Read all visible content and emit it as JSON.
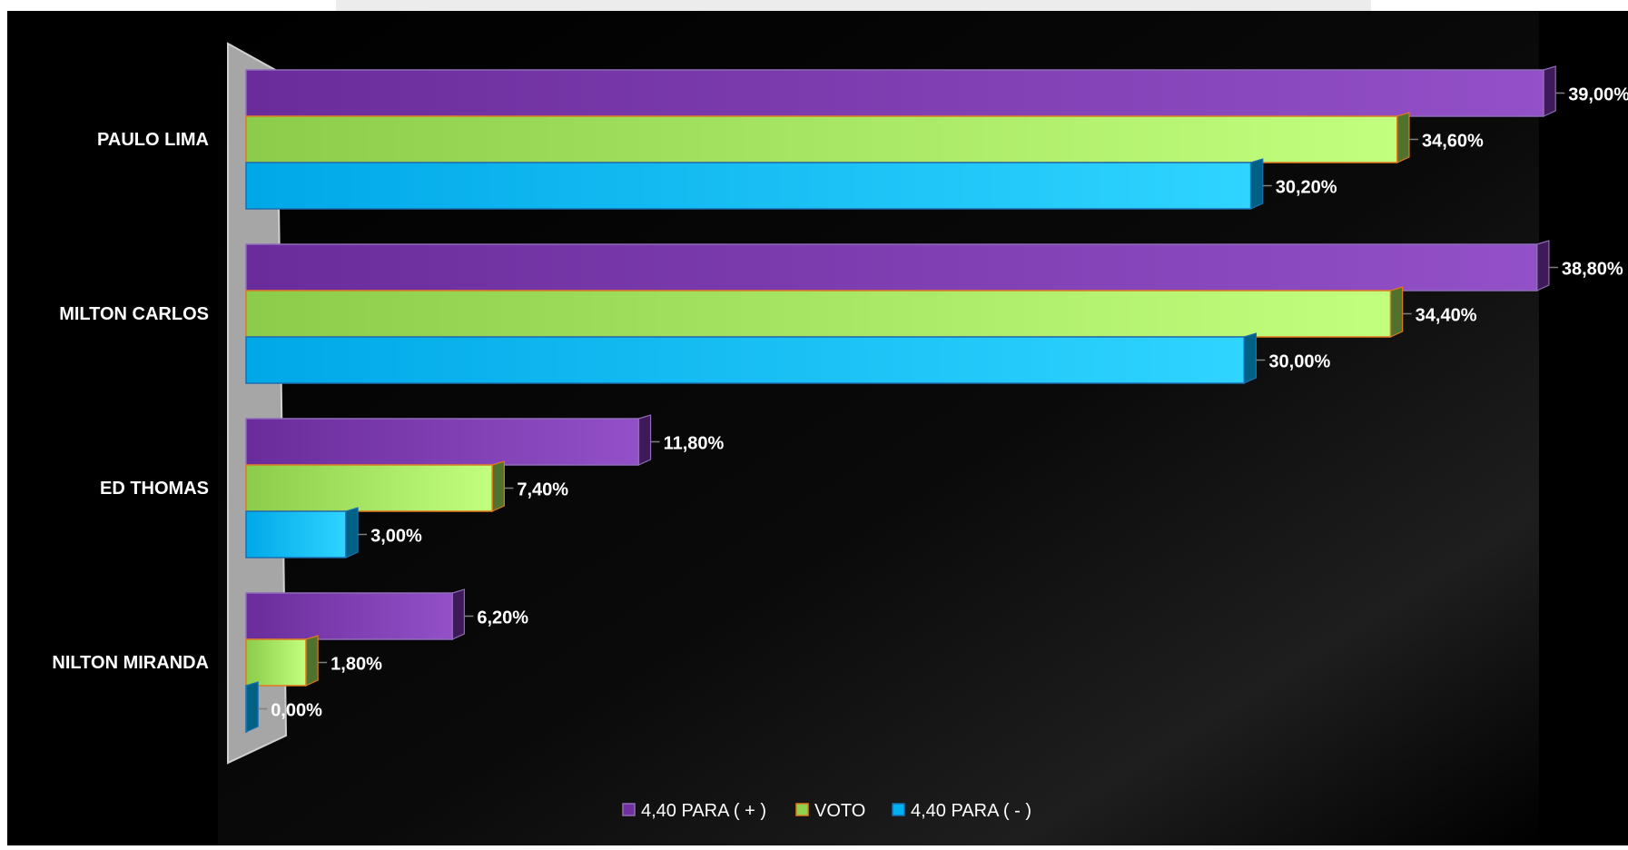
{
  "chart_data": {
    "type": "bar",
    "orientation": "horizontal",
    "style": "3d",
    "categories": [
      "PAULO LIMA",
      "MILTON CARLOS",
      "ED THOMAS",
      "NILTON MIRANDA"
    ],
    "series": [
      {
        "name": "4,40 PARA ( + )",
        "values": [
          39.0,
          38.8,
          11.8,
          6.2
        ],
        "labels": [
          "39,00%",
          "38,80%",
          "11,80%",
          "6,20%"
        ],
        "color": "#7030a0"
      },
      {
        "name": "VOTO",
        "values": [
          34.6,
          34.4,
          7.4,
          1.8
        ],
        "labels": [
          "34,60%",
          "34,40%",
          "7,40%",
          "1,80%"
        ],
        "color": "#92d050"
      },
      {
        "name": "4,40 PARA ( - )",
        "values": [
          30.2,
          30.0,
          3.0,
          0.0
        ],
        "labels": [
          "30,20%",
          "30,00%",
          "3,00%",
          "0,00%"
        ],
        "color": "#00b0f0"
      }
    ],
    "xlim": [
      0,
      39
    ],
    "grid": false,
    "legend": "bottom-center",
    "background": "#000000"
  }
}
